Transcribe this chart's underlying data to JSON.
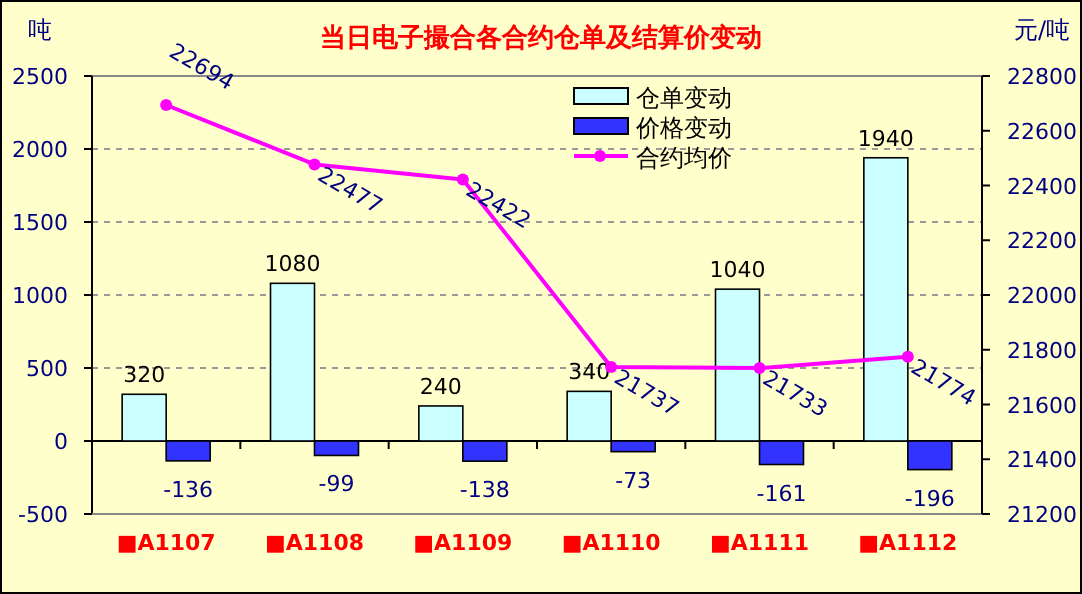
{
  "chart_data": {
    "type": "bar",
    "title": "当日电子撮合各合约仓单及结算价变动",
    "ylabel": "吨",
    "y2label": "元/吨",
    "categories": [
      "■A1107",
      "■A1108",
      "■A1109",
      "■A1110",
      "■A1111",
      "■A1112"
    ],
    "series": [
      {
        "name": "仓单变动",
        "color": "#ccffff",
        "values": [
          320,
          1080,
          240,
          340,
          1040,
          1940
        ]
      },
      {
        "name": "价格变动",
        "color": "#3333ff",
        "values": [
          -136,
          -99,
          -138,
          -73,
          -161,
          -196
        ]
      },
      {
        "name": "合约均价",
        "type": "line",
        "axis": "y2",
        "color": "#ff00ff",
        "marker": "circle",
        "values": [
          22694,
          22477,
          22422,
          21737,
          21733,
          21774
        ]
      }
    ],
    "ylim": [
      -500,
      2500
    ],
    "yticks": [
      -500,
      0,
      500,
      1000,
      1500,
      2000,
      2500
    ],
    "y2lim": [
      21200,
      22800
    ],
    "y2ticks": [
      21200,
      21400,
      21600,
      21800,
      22000,
      22200,
      22400,
      22600,
      22800
    ],
    "grid": "y",
    "legend": "top right",
    "data_labels": true
  }
}
